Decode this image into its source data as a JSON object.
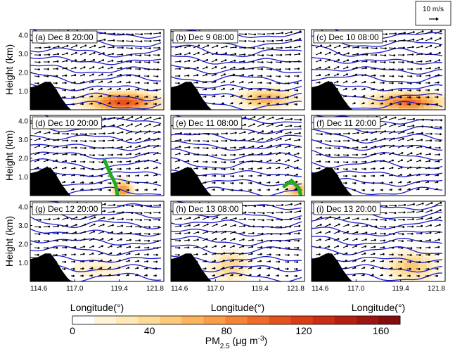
{
  "chart_data": {
    "type": "heatmap",
    "grid": {
      "rows": 3,
      "cols": 3
    },
    "panels": [
      {
        "id": "a",
        "title": "(a) Dec 8 20:00",
        "plume": {
          "center_lon": 119.6,
          "center_height": 0.4,
          "peak": 110,
          "lon_halfwidth": 1.8,
          "height_halfwidth": 0.5
        }
      },
      {
        "id": "b",
        "title": "(b) Dec 9 08:00",
        "plume": {
          "center_lon": 119.8,
          "center_height": 0.6,
          "peak": 65,
          "lon_halfwidth": 1.4,
          "height_halfwidth": 0.5
        }
      },
      {
        "id": "c",
        "title": "(c) Dec 10 08:00",
        "plume": {
          "center_lon": 119.8,
          "center_height": 0.4,
          "peak": 95,
          "lon_halfwidth": 1.8,
          "height_halfwidth": 0.5
        }
      },
      {
        "id": "d",
        "title": "(d) Dec 10 20:00",
        "plume": {
          "center_lon": 119.6,
          "center_height": 0.3,
          "peak": 80,
          "lon_halfwidth": 0.5,
          "height_halfwidth": 0.5
        },
        "front": {
          "color": "#22aa22",
          "points": [
            [
              118.6,
              1.9
            ],
            [
              118.9,
              1.2
            ],
            [
              119.2,
              0.6
            ],
            [
              119.3,
              0.0
            ]
          ]
        }
      },
      {
        "id": "e",
        "title": "(e) Dec 11 08:00",
        "plume": {
          "center_lon": 121.4,
          "center_height": 0.3,
          "peak": 70,
          "lon_halfwidth": 0.6,
          "height_halfwidth": 0.4
        },
        "front": {
          "color": "#22aa22",
          "points": [
            [
              120.7,
              0.5
            ],
            [
              121.1,
              0.8
            ],
            [
              121.5,
              0.4
            ],
            [
              121.6,
              0.0
            ]
          ]
        }
      },
      {
        "id": "f",
        "title": "(f) Dec 11 20:00",
        "plume": {
          "center_lon": 119.5,
          "center_height": 0.4,
          "peak": 12,
          "lon_halfwidth": 1.5,
          "height_halfwidth": 0.4
        }
      },
      {
        "id": "g",
        "title": "(g) Dec 12 20:00",
        "plume": {
          "center_lon": 118.2,
          "center_height": 0.7,
          "peak": 25,
          "lon_halfwidth": 1.5,
          "height_halfwidth": 0.6
        }
      },
      {
        "id": "h",
        "title": "(h) Dec 13 08:00",
        "plume": {
          "center_lon": 117.8,
          "center_height": 0.8,
          "peak": 45,
          "lon_halfwidth": 1.0,
          "height_halfwidth": 0.8
        }
      },
      {
        "id": "i",
        "title": "(i) Dec 13 20:00",
        "plume": {
          "center_lon": 120.0,
          "center_height": 0.8,
          "peak": 50,
          "lon_halfwidth": 1.3,
          "height_halfwidth": 0.8
        }
      }
    ],
    "x_ticks": [
      "114.6",
      "117.0",
      "119.4",
      "121.8"
    ],
    "xlim": [
      114.6,
      121.8
    ],
    "y_ticks": [
      "1.0",
      "2.0",
      "3.0",
      "4.0"
    ],
    "ylim": [
      0,
      4.3
    ],
    "xlabel": "Longitude(°)",
    "ylabel": "Height (km)",
    "terrain": [
      [
        114.6,
        1.2
      ],
      [
        115.0,
        1.3
      ],
      [
        115.4,
        1.5
      ],
      [
        115.7,
        1.5
      ],
      [
        116.0,
        1.1
      ],
      [
        116.3,
        0.6
      ],
      [
        116.6,
        0.2
      ],
      [
        116.8,
        0.0
      ]
    ],
    "colorbar": {
      "label": "PM2.5 (μg m-3)",
      "label_main": "PM",
      "label_sub": "2.5",
      "label_unit": " (μg m",
      "label_sup": "-3",
      "label_close": ")",
      "ticks": [
        "0",
        "40",
        "80",
        "120",
        "160"
      ],
      "range": [
        0,
        170
      ],
      "colors": [
        "#ffffff",
        "#fff4d8",
        "#ffe8b5",
        "#fedb94",
        "#fdc877",
        "#fcb35d",
        "#fa9d47",
        "#f58435",
        "#ee6a29",
        "#e4521f",
        "#d83d18",
        "#c92d14",
        "#b51f12",
        "#9d1510",
        "#840c0d"
      ]
    },
    "wind_scale": {
      "label": "10 m/s"
    },
    "colors": {
      "contour": "#1a1acc",
      "terrain": "#000000",
      "wind_arrow": "#000000"
    }
  }
}
